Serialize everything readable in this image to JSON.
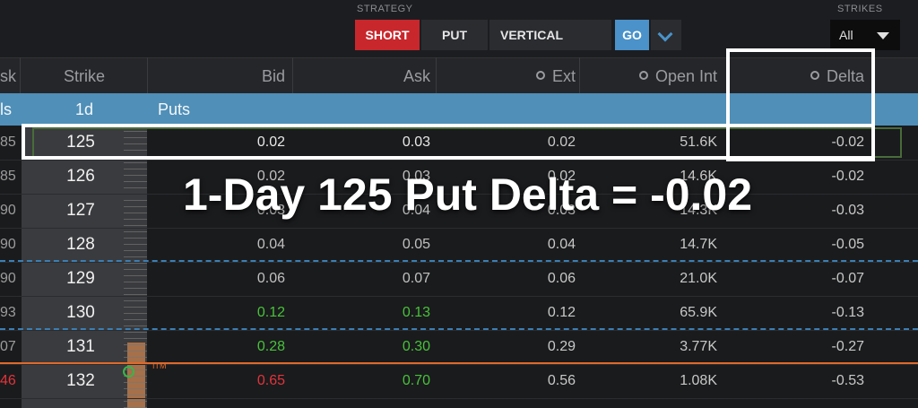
{
  "toolbar": {
    "strategy_label": "STRATEGY",
    "short": "SHORT",
    "put": "PUT",
    "vertical": "VERTICAL",
    "go": "GO",
    "strikes_label": "STRIKES",
    "strikes_value": "All"
  },
  "colors": {
    "short": "#c8272c",
    "go": "#4a92c9",
    "subheader": "#4f8fb8",
    "itm_line": "#e06a2a"
  },
  "columns": {
    "ask_prev": "sk",
    "strike": "Strike",
    "bid": "Bid",
    "ask": "Ask",
    "ext": "Ext",
    "open_int": "Open Int",
    "delta": "Delta"
  },
  "subheader": {
    "prev": "ls",
    "expiry": "1d",
    "side": "Puts"
  },
  "rows": [
    {
      "prev": "85",
      "strike": "125",
      "bid": "0.02",
      "ask": "0.03",
      "ext": "0.02",
      "open_int": "51.6K",
      "delta": "-0.02"
    },
    {
      "prev": "85",
      "strike": "126",
      "bid": "0.02",
      "ask": "0.03",
      "ext": "0.02",
      "open_int": "14.6K",
      "delta": "-0.02"
    },
    {
      "prev": "90",
      "strike": "127",
      "bid": "0.03",
      "ask": "0.04",
      "ext": "0.03",
      "open_int": "14.3K",
      "delta": "-0.03"
    },
    {
      "prev": "90",
      "strike": "128",
      "bid": "0.04",
      "ask": "0.05",
      "ext": "0.04",
      "open_int": "14.7K",
      "delta": "-0.05"
    },
    {
      "prev": "90",
      "strike": "129",
      "bid": "0.06",
      "ask": "0.07",
      "ext": "0.06",
      "open_int": "21.0K",
      "delta": "-0.07"
    },
    {
      "prev": "93",
      "strike": "130",
      "bid": "0.12",
      "ask": "0.13",
      "ext": "0.12",
      "open_int": "65.9K",
      "delta": "-0.13"
    },
    {
      "prev": "07",
      "strike": "131",
      "bid": "0.28",
      "ask": "0.30",
      "ext": "0.29",
      "open_int": "3.77K",
      "delta": "-0.27"
    },
    {
      "prev": "46",
      "strike": "132",
      "bid": "0.65",
      "ask": "0.70",
      "ext": "0.56",
      "open_int": "1.08K",
      "delta": "-0.53"
    }
  ],
  "itm_label": "ITM",
  "annotation": "1-Day 125 Put Delta = -0.02"
}
